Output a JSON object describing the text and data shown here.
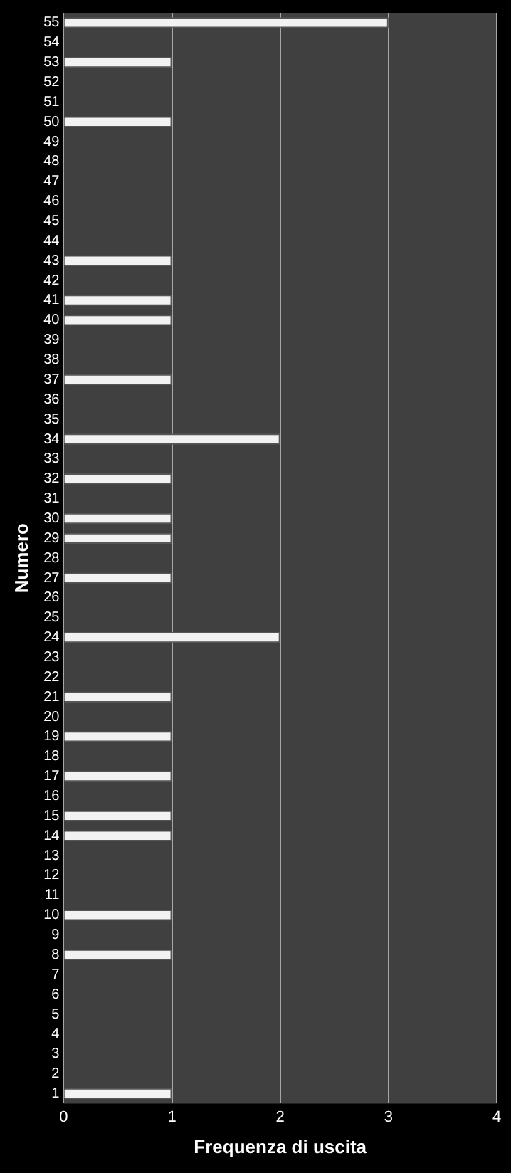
{
  "chart_data": {
    "type": "bar",
    "orientation": "horizontal",
    "xlabel": "Frequenza di uscita",
    "ylabel": "Numero",
    "categories": [
      "55",
      "54",
      "53",
      "52",
      "51",
      "50",
      "49",
      "48",
      "47",
      "46",
      "45",
      "44",
      "43",
      "42",
      "41",
      "40",
      "39",
      "38",
      "37",
      "36",
      "35",
      "34",
      "33",
      "32",
      "31",
      "30",
      "29",
      "28",
      "27",
      "26",
      "25",
      "24",
      "23",
      "22",
      "21",
      "20",
      "19",
      "18",
      "17",
      "16",
      "15",
      "14",
      "13",
      "12",
      "11",
      "10",
      "9",
      "8",
      "7",
      "6",
      "5",
      "4",
      "3",
      "2",
      "1"
    ],
    "values": [
      3,
      0,
      1,
      0,
      0,
      1,
      0,
      0,
      0,
      0,
      0,
      0,
      1,
      0,
      1,
      1,
      0,
      0,
      1,
      0,
      0,
      2,
      0,
      1,
      0,
      1,
      1,
      0,
      1,
      0,
      0,
      2,
      0,
      0,
      1,
      0,
      1,
      0,
      1,
      0,
      1,
      1,
      0,
      0,
      0,
      1,
      0,
      1,
      0,
      0,
      0,
      0,
      0,
      0,
      1
    ],
    "color": "#f2f2f2",
    "xlim": [
      0,
      4
    ],
    "xticks": [
      0,
      1,
      2,
      3,
      4
    ],
    "grid": "x"
  }
}
